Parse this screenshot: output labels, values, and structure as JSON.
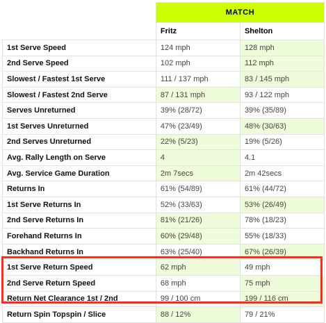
{
  "header": {
    "match_label": "MATCH"
  },
  "players": [
    "Fritz",
    "Shelton"
  ],
  "colors": {
    "match_header": "#ccff00",
    "winner_cell": "#eefcd9",
    "highlight_border": "#ff2a1a"
  },
  "rows": [
    {
      "label": "1st Serve Speed",
      "p1": "124 mph",
      "p2": "128 mph",
      "win": "p2"
    },
    {
      "label": "2nd Serve Speed",
      "p1": "102 mph",
      "p2": "112 mph",
      "win": "p2"
    },
    {
      "label": "Slowest / Fastest 1st Serve",
      "p1": "111 / 137 mph",
      "p2": "83 / 145 mph",
      "win": "p2"
    },
    {
      "label": "Slowest / Fastest 2nd Serve",
      "p1": "87 / 131 mph",
      "p2": "93 / 122 mph",
      "win": "p1"
    },
    {
      "label": "Serves Unreturned",
      "p1": "39% (28/72)",
      "p2": "39% (35/89)",
      "win": ""
    },
    {
      "label": "1st Serves Unreturned",
      "p1": "47% (23/49)",
      "p2": "48% (30/63)",
      "win": "p2"
    },
    {
      "label": "2nd Serves Unreturned",
      "p1": "22% (5/23)",
      "p2": "19% (5/26)",
      "win": "p1"
    },
    {
      "label": "Avg. Rally Length on Serve",
      "p1": "4",
      "p2": "4.1",
      "win": "p1"
    },
    {
      "label": "Avg. Service Game Duration",
      "p1": "2m 7secs",
      "p2": "2m 42secs",
      "win": "p1"
    },
    {
      "label": "Returns In",
      "p1": "61% (54/89)",
      "p2": "61% (44/72)",
      "win": ""
    },
    {
      "label": "1st Serve Returns In",
      "p1": "52% (33/63)",
      "p2": "53% (26/49)",
      "win": "p2"
    },
    {
      "label": "2nd Serve Returns In",
      "p1": "81% (21/26)",
      "p2": "78% (18/23)",
      "win": "p1"
    },
    {
      "label": "Forehand Returns In",
      "p1": "60% (29/48)",
      "p2": "55% (18/33)",
      "win": "p1"
    },
    {
      "label": "Backhand Returns In",
      "p1": "63% (25/40)",
      "p2": "67% (26/39)",
      "win": "p2"
    },
    {
      "label": "1st Serve Return Speed",
      "p1": "62 mph",
      "p2": "49 mph",
      "win": "p1"
    },
    {
      "label": "2nd Serve Return Speed",
      "p1": "68 mph",
      "p2": "75 mph",
      "win": "p2"
    },
    {
      "label": "Return Net Clearance 1st / 2nd",
      "p1": "99 / 100 cm",
      "p2": "199 / 116 cm",
      "win": "p2"
    },
    {
      "label": "Return Spin Topspin / Slice",
      "p1": "88 / 12%",
      "p2": "79 / 21%",
      "win": "p1"
    }
  ]
}
